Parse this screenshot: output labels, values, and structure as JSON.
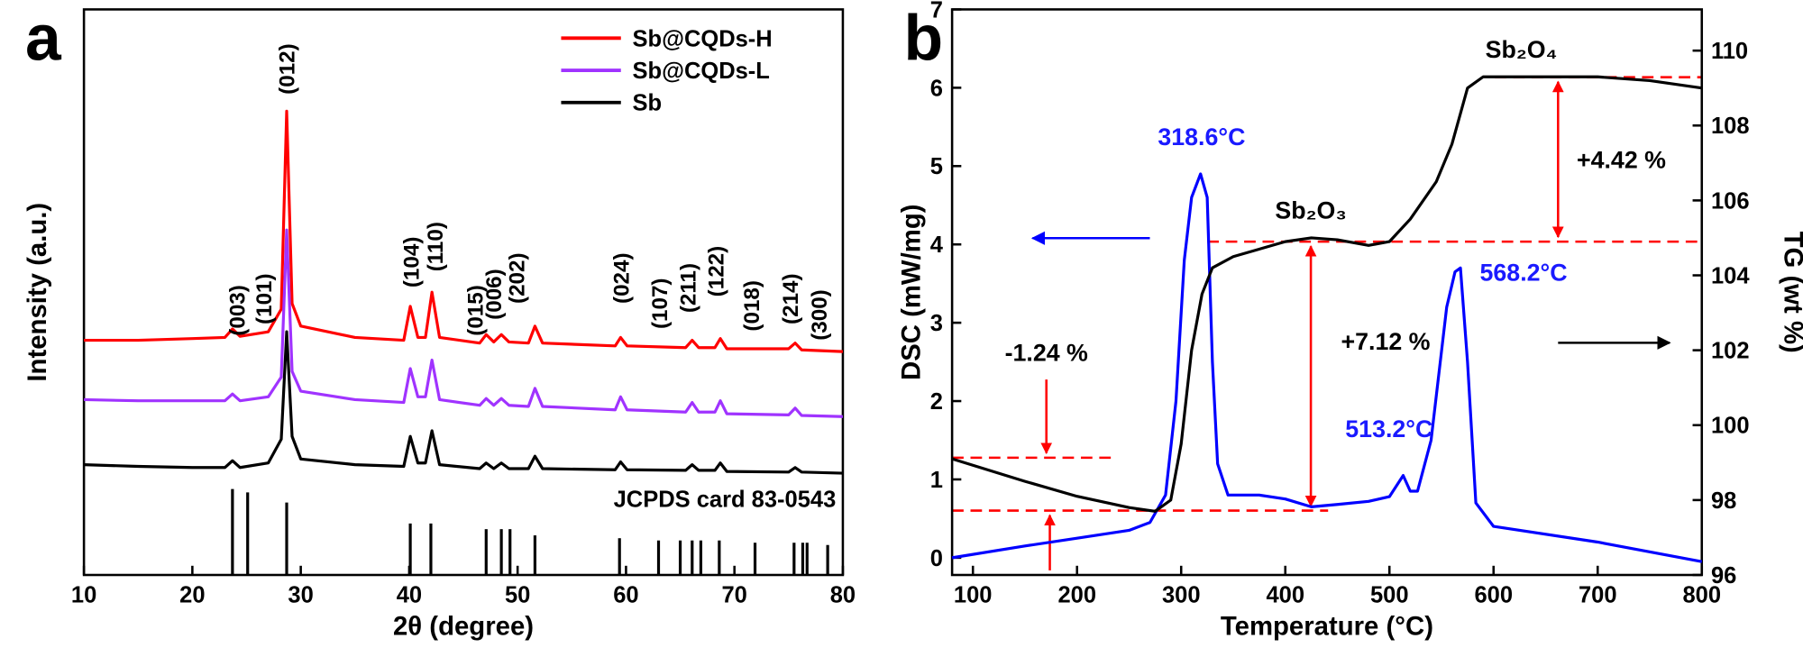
{
  "chart_data": [
    {
      "type": "line",
      "panel_label": "a",
      "xlabel": "2θ (degree)",
      "ylabel": "Intensity (a.u.)",
      "xlim": [
        10,
        80
      ],
      "xticks": [
        10,
        20,
        30,
        40,
        50,
        60,
        70,
        80
      ],
      "ylim": [
        0,
        100
      ],
      "legend": "upper right",
      "x": [
        10,
        15,
        20,
        23,
        23.7,
        24.4,
        27,
        28.2,
        28.7,
        29.2,
        30,
        35,
        39.5,
        40.1,
        40.8,
        41.5,
        42.1,
        42.8,
        46.5,
        47.1,
        47.8,
        48.5,
        49.2,
        51,
        51.6,
        52.3,
        59,
        59.5,
        60.1,
        65.5,
        66.1,
        66.7,
        68.2,
        68.7,
        69.3,
        75,
        75.6,
        76.2,
        80
      ],
      "series": [
        {
          "name": "Sb@CQDs-H",
          "color": "#ff0000",
          "values": [
            41.5,
            41.5,
            41.8,
            42,
            43.5,
            42.2,
            43,
            47,
            82,
            48,
            44,
            42,
            41.5,
            47.5,
            42,
            42,
            50,
            42,
            41,
            42.5,
            41.2,
            42.5,
            41.2,
            41,
            44,
            41,
            40.5,
            42,
            40.5,
            40.2,
            41.5,
            40.2,
            40.2,
            41.8,
            40,
            40,
            41,
            39.8,
            39.5
          ]
        },
        {
          "name": "Sb@CQDs-L",
          "color": "#a033ff",
          "values": [
            31,
            30.8,
            30.8,
            30.8,
            32,
            30.8,
            31.5,
            35,
            61,
            36,
            32.5,
            31,
            30.5,
            36.5,
            31.5,
            31.5,
            38,
            31,
            30,
            31.2,
            30,
            31.2,
            30,
            29.8,
            33,
            29.8,
            29.2,
            31.5,
            29.2,
            28.8,
            30.5,
            28.8,
            28.8,
            30.8,
            28.5,
            28.3,
            29.5,
            28.2,
            28
          ]
        },
        {
          "name": "Sb",
          "color": "#000000",
          "values": [
            19.5,
            19.2,
            19,
            19,
            20.2,
            19,
            19.8,
            24,
            43,
            24.5,
            20.5,
            19.5,
            19.2,
            24.5,
            19.8,
            19.8,
            25.5,
            19.5,
            18.8,
            19.8,
            18.8,
            19.8,
            18.8,
            18.8,
            21,
            18.8,
            18.6,
            20,
            18.6,
            18.5,
            19.5,
            18.5,
            18.5,
            19.8,
            18.3,
            18.2,
            19,
            18.2,
            18
          ]
        }
      ],
      "reference": {
        "name": "JCPDS card 83-0543",
        "color": "#000000",
        "x": [
          23.7,
          25.1,
          28.7,
          40.1,
          42.0,
          47.1,
          48.5,
          49.3,
          51.6,
          59.4,
          63.0,
          65.0,
          66.1,
          66.9,
          68.6,
          71.9,
          75.5,
          76.3,
          76.7,
          78.6
        ],
        "values": [
          15.2,
          14.6,
          12.8,
          9.1,
          9.1,
          8.1,
          8.1,
          8.1,
          7,
          6.5,
          6.1,
          6.1,
          6.1,
          6.1,
          6.1,
          5.7,
          5.7,
          5.7,
          5.7,
          5.3
        ]
      },
      "annotations": [
        {
          "text": "(003)"
        },
        {
          "text": "(101)"
        },
        {
          "text": "(012)"
        },
        {
          "text": "(104)"
        },
        {
          "text": "(110)"
        },
        {
          "text": "(015)"
        },
        {
          "text": "(006)"
        },
        {
          "text": "(202)"
        },
        {
          "text": "(024)"
        },
        {
          "text": "(107)"
        },
        {
          "text": "(211)"
        },
        {
          "text": "(122)"
        },
        {
          "text": "(018)"
        },
        {
          "text": "(214)"
        },
        {
          "text": "(300)"
        }
      ]
    },
    {
      "type": "line",
      "panel_label": "b",
      "xlabel": "Temperature (°C)",
      "ylabel": "DSC (mW/mg)",
      "y2label": "TG (wt %)",
      "xlim": [
        80,
        800
      ],
      "xticks": [
        100,
        200,
        300,
        400,
        500,
        600,
        700,
        800
      ],
      "ylim": [
        -0.22,
        7
      ],
      "yticks": [
        0,
        1,
        2,
        3,
        4,
        5,
        6,
        7
      ],
      "y2lim": [
        96,
        111.1
      ],
      "y2ticks": [
        96,
        98,
        100,
        102,
        104,
        106,
        108,
        110
      ],
      "series": [
        {
          "color": "#0000ff",
          "x": [
            80,
            150,
            200,
            250,
            270,
            285,
            295,
            303,
            310,
            318.6,
            325,
            330,
            335,
            345,
            375,
            400,
            425,
            450,
            480,
            500,
            513.2,
            520,
            527,
            540,
            555,
            563,
            568.2,
            575,
            583,
            600,
            700,
            800
          ],
          "values": [
            0,
            0.15,
            0.25,
            0.35,
            0.45,
            0.8,
            2,
            3.8,
            4.6,
            4.9,
            4.6,
            2.5,
            1.2,
            0.8,
            0.8,
            0.75,
            0.65,
            0.68,
            0.72,
            0.78,
            1.05,
            0.85,
            0.85,
            1.5,
            3.2,
            3.65,
            3.7,
            2.5,
            0.7,
            0.4,
            0.2,
            -0.05
          ]
        },
        {
          "color": "#000000",
          "axis": "y2",
          "x": [
            80,
            150,
            200,
            250,
            275,
            290,
            300,
            310,
            320,
            330,
            350,
            400,
            425,
            450,
            480,
            500,
            520,
            545,
            560,
            575,
            590,
            650,
            700,
            750,
            800
          ],
          "values": [
            99.1,
            98.5,
            98.1,
            97.8,
            97.7,
            98.0,
            99.5,
            102.0,
            103.5,
            104.2,
            104.5,
            104.9,
            105.0,
            104.95,
            104.8,
            104.9,
            105.5,
            106.5,
            107.5,
            109.0,
            109.3,
            109.3,
            109.3,
            109.2,
            109.0
          ]
        }
      ],
      "annotations": [
        {
          "text": "318.6°C",
          "color": "#1a1aff"
        },
        {
          "text": "513.2°C",
          "color": "#1a1aff"
        },
        {
          "text": "568.2°C",
          "color": "#1a1aff"
        },
        {
          "text": "Sb₂O₃",
          "color": "#000000"
        },
        {
          "text": "Sb₂O₄",
          "color": "#000000"
        },
        {
          "text": "+4.42 %",
          "color": "#000000"
        },
        {
          "text": "+7.12 %",
          "color": "#000000"
        },
        {
          "text": "-1.24 %",
          "color": "#000000"
        }
      ]
    }
  ]
}
